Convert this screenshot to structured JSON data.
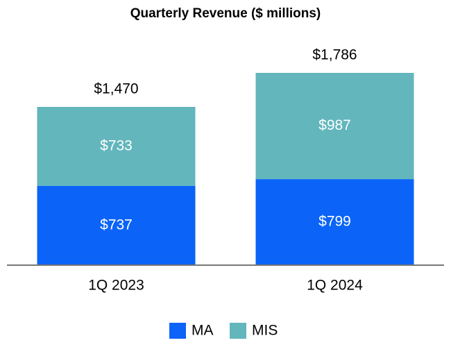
{
  "chart_data": {
    "type": "stacked-bar",
    "title": "Quarterly Revenue ($ millions)",
    "categories": [
      "1Q 2023",
      "1Q 2024"
    ],
    "series": [
      {
        "name": "MA",
        "color": "#0b64f7",
        "values": [
          737,
          799
        ],
        "value_labels": [
          "$737",
          "$799"
        ]
      },
      {
        "name": "MIS",
        "color": "#62b6bc",
        "values": [
          733,
          987
        ],
        "value_labels": [
          "$733",
          "$987"
        ]
      }
    ],
    "totals": {
      "values": [
        1470,
        1786
      ],
      "value_labels": [
        "$1,470",
        "$1,786"
      ]
    },
    "legend": "bottom"
  }
}
